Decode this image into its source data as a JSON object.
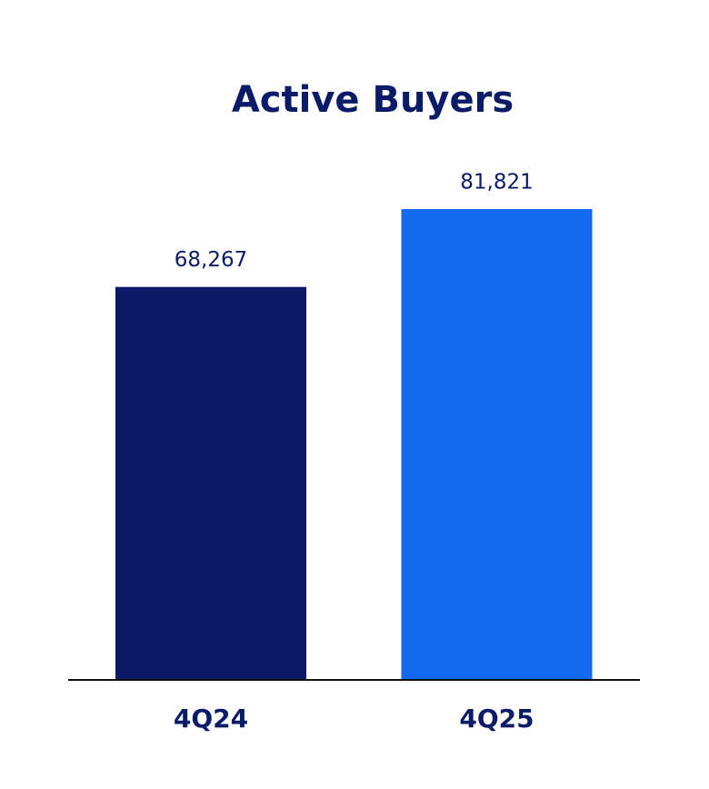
{
  "chart_data": {
    "type": "bar",
    "title": "Active Buyers",
    "categories": [
      "4Q24",
      "4Q25"
    ],
    "values": [
      68267,
      81821
    ],
    "value_labels": [
      "68,267",
      "81,821"
    ],
    "colors": [
      "#0a1a66",
      "#146aec"
    ]
  }
}
